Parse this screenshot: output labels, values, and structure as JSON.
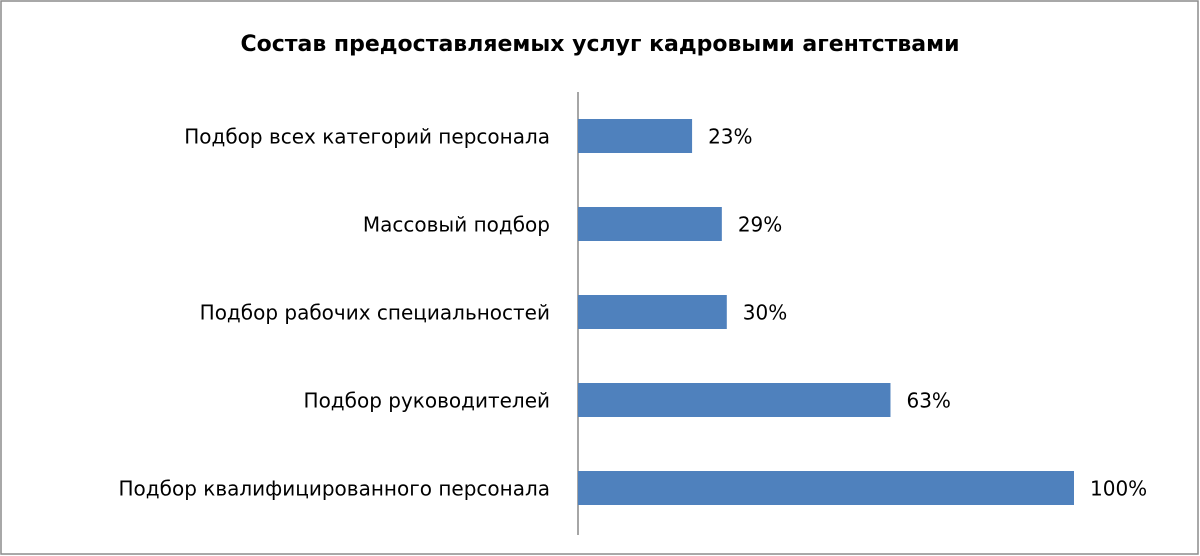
{
  "chart_data": {
    "type": "bar",
    "orientation": "horizontal",
    "title": "Состав предоставляемых услуг кадровыми агентствами",
    "categories": [
      "Подбор всех категорий персонала",
      "Массовый подбор",
      "Подбор рабочих специальностей",
      "Подбор руководителей",
      "Подбор квалифицированного персонала"
    ],
    "values": [
      23,
      29,
      30,
      63,
      100
    ],
    "value_labels": [
      "23%",
      "29%",
      "30%",
      "63%",
      "100%"
    ],
    "color": "#4f81bd"
  }
}
